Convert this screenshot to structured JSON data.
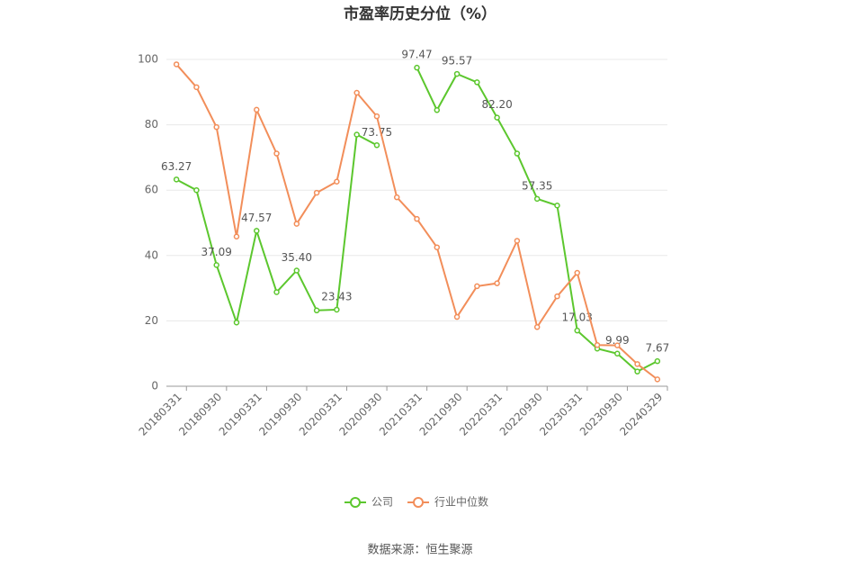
{
  "chart_data": {
    "type": "line",
    "title": "市盈率历史分位（%）",
    "source": "数据来源：恒生聚源",
    "categories": [
      "20180331",
      null,
      "20180930",
      null,
      "20190331",
      null,
      "20190930",
      null,
      "20200331",
      null,
      "20200930",
      null,
      "20210331",
      null,
      "20210930",
      null,
      "20220331",
      null,
      "20220930",
      null,
      "20230331",
      null,
      "20230930",
      null,
      "20240329"
    ],
    "ylim": [
      0,
      100
    ],
    "yticks": [
      0,
      20,
      40,
      60,
      80,
      100
    ],
    "grid": true,
    "legend": "bottom",
    "series": [
      {
        "name": "公司",
        "color": "#5cc72e",
        "values": [
          63.27,
          60,
          37.09,
          19.5,
          47.57,
          28.8,
          35.4,
          23.2,
          23.43,
          77,
          73.75,
          null,
          97.47,
          84.5,
          95.57,
          93,
          82.2,
          71.2,
          57.35,
          55.3,
          17.03,
          11.5,
          9.99,
          4.5,
          7.67
        ],
        "value_labels": [
          "63.27",
          null,
          "37.09",
          null,
          "47.57",
          null,
          "35.40",
          null,
          "23.43",
          null,
          "73.75",
          null,
          "97.47",
          null,
          "95.57",
          null,
          "82.20",
          null,
          "57.35",
          null,
          "17.03",
          null,
          "9.99",
          null,
          "7.67"
        ]
      },
      {
        "name": "行业中位数",
        "color": "#f28e5a",
        "values": [
          98.5,
          91.5,
          79.3,
          45.8,
          84.6,
          71.2,
          49.7,
          59.2,
          62.6,
          89.8,
          82.6,
          57.8,
          51.2,
          42.5,
          21.2,
          30.6,
          31.5,
          44.5,
          18.1,
          27.5,
          34.7,
          12.6,
          12.5,
          6.8,
          2.1
        ]
      }
    ]
  }
}
